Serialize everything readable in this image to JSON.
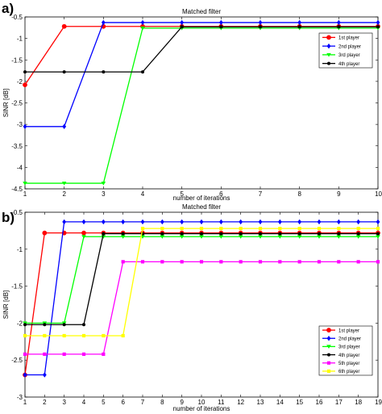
{
  "chart_data": [
    {
      "panel": "a)",
      "type": "line",
      "title": "Matched filter",
      "xlabel": "number of iterations",
      "ylabel": "SINR [dB]",
      "xlim": [
        1,
        10
      ],
      "ylim": [
        -4.5,
        -0.5
      ],
      "xticks": [
        1,
        2,
        3,
        4,
        5,
        6,
        7,
        8,
        9,
        10
      ],
      "yticks": [
        -4.5,
        -4,
        -3.5,
        -3,
        -2.5,
        -2,
        -1.5,
        -1,
        -0.5
      ],
      "ytick_labels": [
        "-4.5",
        "-4",
        "-3.5",
        "-3",
        "-2.5",
        "-2",
        "-1.5",
        "-1",
        "-0.5"
      ],
      "grid": false,
      "legend_position": "top-right",
      "x": [
        1,
        2,
        3,
        4,
        5,
        6,
        7,
        8,
        9,
        10
      ],
      "series": [
        {
          "name": "1st player",
          "color": "#ff0000",
          "marker": "circle",
          "values": [
            -2.08,
            -0.72,
            -0.72,
            -0.72,
            -0.72,
            -0.72,
            -0.72,
            -0.72,
            -0.72,
            -0.72
          ]
        },
        {
          "name": "2nd player",
          "color": "#0000ff",
          "marker": "diamond",
          "values": [
            -3.05,
            -3.05,
            -0.63,
            -0.63,
            -0.63,
            -0.63,
            -0.63,
            -0.63,
            -0.63,
            -0.63
          ]
        },
        {
          "name": "3rd player",
          "color": "#00ff00",
          "marker": "triangle-down",
          "values": [
            -4.37,
            -4.37,
            -4.37,
            -0.76,
            -0.76,
            -0.76,
            -0.76,
            -0.76,
            -0.76,
            -0.76
          ]
        },
        {
          "name": "4th player",
          "color": "#000000",
          "marker": "dot",
          "values": [
            -1.78,
            -1.78,
            -1.78,
            -1.78,
            -0.73,
            -0.73,
            -0.73,
            -0.73,
            -0.73,
            -0.73
          ]
        }
      ]
    },
    {
      "panel": "b)",
      "type": "line",
      "title": "Matched filter",
      "xlabel": "number of iterations",
      "ylabel": "SINR [dB]",
      "xlim": [
        1,
        19
      ],
      "ylim": [
        -3,
        -0.5
      ],
      "xticks": [
        1,
        2,
        3,
        4,
        5,
        6,
        7,
        8,
        9,
        10,
        11,
        12,
        13,
        14,
        15,
        16,
        17,
        18,
        19
      ],
      "yticks": [
        -3,
        -2.5,
        -2,
        -1.5,
        -1,
        -0.5
      ],
      "ytick_labels": [
        "-3",
        "-2.5",
        "-2",
        "-1.5",
        "-1",
        "-0.5"
      ],
      "grid": false,
      "legend_position": "bottom-right",
      "x": [
        1,
        2,
        3,
        4,
        5,
        6,
        7,
        8,
        9,
        10,
        11,
        12,
        13,
        14,
        15,
        16,
        17,
        18,
        19
      ],
      "series": [
        {
          "name": "1st player",
          "color": "#ff0000",
          "marker": "circle",
          "values": [
            -2.7,
            -0.78,
            -0.78,
            -0.78,
            -0.78,
            -0.78,
            -0.78,
            -0.78,
            -0.78,
            -0.78,
            -0.78,
            -0.78,
            -0.78,
            -0.78,
            -0.78,
            -0.78,
            -0.78,
            -0.78,
            -0.78
          ]
        },
        {
          "name": "2nd player",
          "color": "#0000ff",
          "marker": "diamond",
          "values": [
            -2.7,
            -2.7,
            -0.63,
            -0.63,
            -0.63,
            -0.63,
            -0.63,
            -0.63,
            -0.63,
            -0.63,
            -0.63,
            -0.63,
            -0.63,
            -0.63,
            -0.63,
            -0.63,
            -0.63,
            -0.63,
            -0.63
          ]
        },
        {
          "name": "3rd player",
          "color": "#00ff00",
          "marker": "triangle-down",
          "values": [
            -2.0,
            -2.0,
            -2.0,
            -0.83,
            -0.83,
            -0.83,
            -0.83,
            -0.83,
            -0.83,
            -0.83,
            -0.83,
            -0.83,
            -0.83,
            -0.83,
            -0.83,
            -0.83,
            -0.83,
            -0.83,
            -0.83
          ]
        },
        {
          "name": "4th player",
          "color": "#000000",
          "marker": "dot",
          "values": [
            -2.02,
            -2.02,
            -2.02,
            -2.02,
            -0.79,
            -0.79,
            -0.79,
            -0.79,
            -0.79,
            -0.79,
            -0.79,
            -0.79,
            -0.79,
            -0.79,
            -0.79,
            -0.79,
            -0.79,
            -0.79,
            -0.79
          ]
        },
        {
          "name": "5th player",
          "color": "#ff00ff",
          "marker": "square",
          "values": [
            -2.42,
            -2.42,
            -2.42,
            -2.42,
            -2.42,
            -1.17,
            -1.17,
            -1.17,
            -1.17,
            -1.17,
            -1.17,
            -1.17,
            -1.17,
            -1.17,
            -1.17,
            -1.17,
            -1.17,
            -1.17,
            -1.17
          ]
        },
        {
          "name": "6th player",
          "color": "#ffff00",
          "marker": "square",
          "values": [
            -2.17,
            -2.17,
            -2.17,
            -2.17,
            -2.17,
            -2.17,
            -0.72,
            -0.72,
            -0.72,
            -0.72,
            -0.72,
            -0.72,
            -0.72,
            -0.72,
            -0.72,
            -0.72,
            -0.72,
            -0.72,
            -0.72
          ]
        }
      ]
    }
  ]
}
